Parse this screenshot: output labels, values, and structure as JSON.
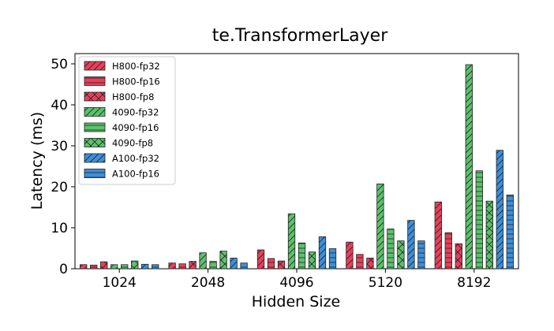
{
  "chart_data": {
    "type": "bar",
    "title": "te.TransformerLayer",
    "xlabel": "Hidden Size",
    "ylabel": "Latency (ms)",
    "ylim": [
      0,
      52.5
    ],
    "yticks": [
      0,
      10,
      20,
      30,
      40,
      50
    ],
    "categories": [
      "1024",
      "2048",
      "4096",
      "5120",
      "8192"
    ],
    "legend_position": "upper-left",
    "series": [
      {
        "name": "H800-fp32",
        "color": "#e8405a",
        "hatch": "diag-right",
        "values": [
          1.0,
          1.4,
          4.6,
          6.5,
          16.3
        ]
      },
      {
        "name": "H800-fp16",
        "color": "#e8405a",
        "hatch": "horizontal",
        "values": [
          0.9,
          1.2,
          2.5,
          3.5,
          8.8
        ]
      },
      {
        "name": "H800-fp8",
        "color": "#e8405a",
        "hatch": "cross-diag",
        "values": [
          1.7,
          1.8,
          1.9,
          2.6,
          6.1
        ]
      },
      {
        "name": "4090-fp32",
        "color": "#5bc26b",
        "hatch": "diag-right",
        "values": [
          1.0,
          3.9,
          13.4,
          20.7,
          49.8
        ]
      },
      {
        "name": "4090-fp16",
        "color": "#5bc26b",
        "hatch": "horizontal",
        "values": [
          1.0,
          1.8,
          6.3,
          9.7,
          23.9
        ]
      },
      {
        "name": "4090-fp8",
        "color": "#5bc26b",
        "hatch": "cross-diag",
        "values": [
          1.9,
          4.3,
          4.1,
          6.8,
          16.5
        ]
      },
      {
        "name": "A100-fp32",
        "color": "#3d8fd9",
        "hatch": "diag-right",
        "values": [
          1.1,
          2.6,
          7.8,
          11.8,
          28.9
        ]
      },
      {
        "name": "A100-fp16",
        "color": "#3d8fd9",
        "hatch": "horizontal",
        "values": [
          1.0,
          1.4,
          4.9,
          6.8,
          18.0
        ]
      }
    ]
  }
}
